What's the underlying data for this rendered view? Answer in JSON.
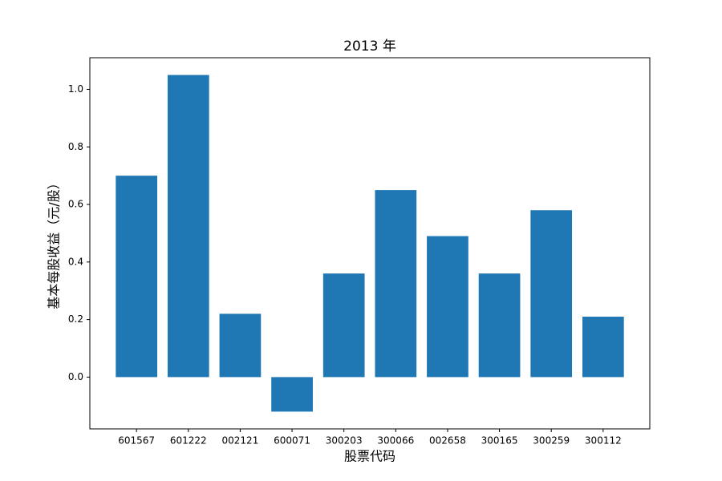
{
  "chart_data": {
    "type": "bar",
    "title": "2013 年",
    "x_label": "股票代码",
    "y_label": "基本每股收益（元/股）",
    "categories": [
      "601567",
      "601222",
      "002121",
      "600071",
      "300203",
      "300066",
      "002658",
      "300165",
      "300259",
      "300112"
    ],
    "values": [
      0.7,
      1.05,
      0.22,
      -0.12,
      0.36,
      0.65,
      0.49,
      0.36,
      0.58,
      0.21
    ],
    "color": "#1f77b4",
    "ylim": [
      -0.18,
      1.11
    ],
    "yticks": [
      {
        "value": 0,
        "label": "0.0"
      },
      0.2,
      0.4,
      0.6,
      0.8,
      {
        "value": 1,
        "label": "1.0"
      }
    ],
    "grid": false
  }
}
